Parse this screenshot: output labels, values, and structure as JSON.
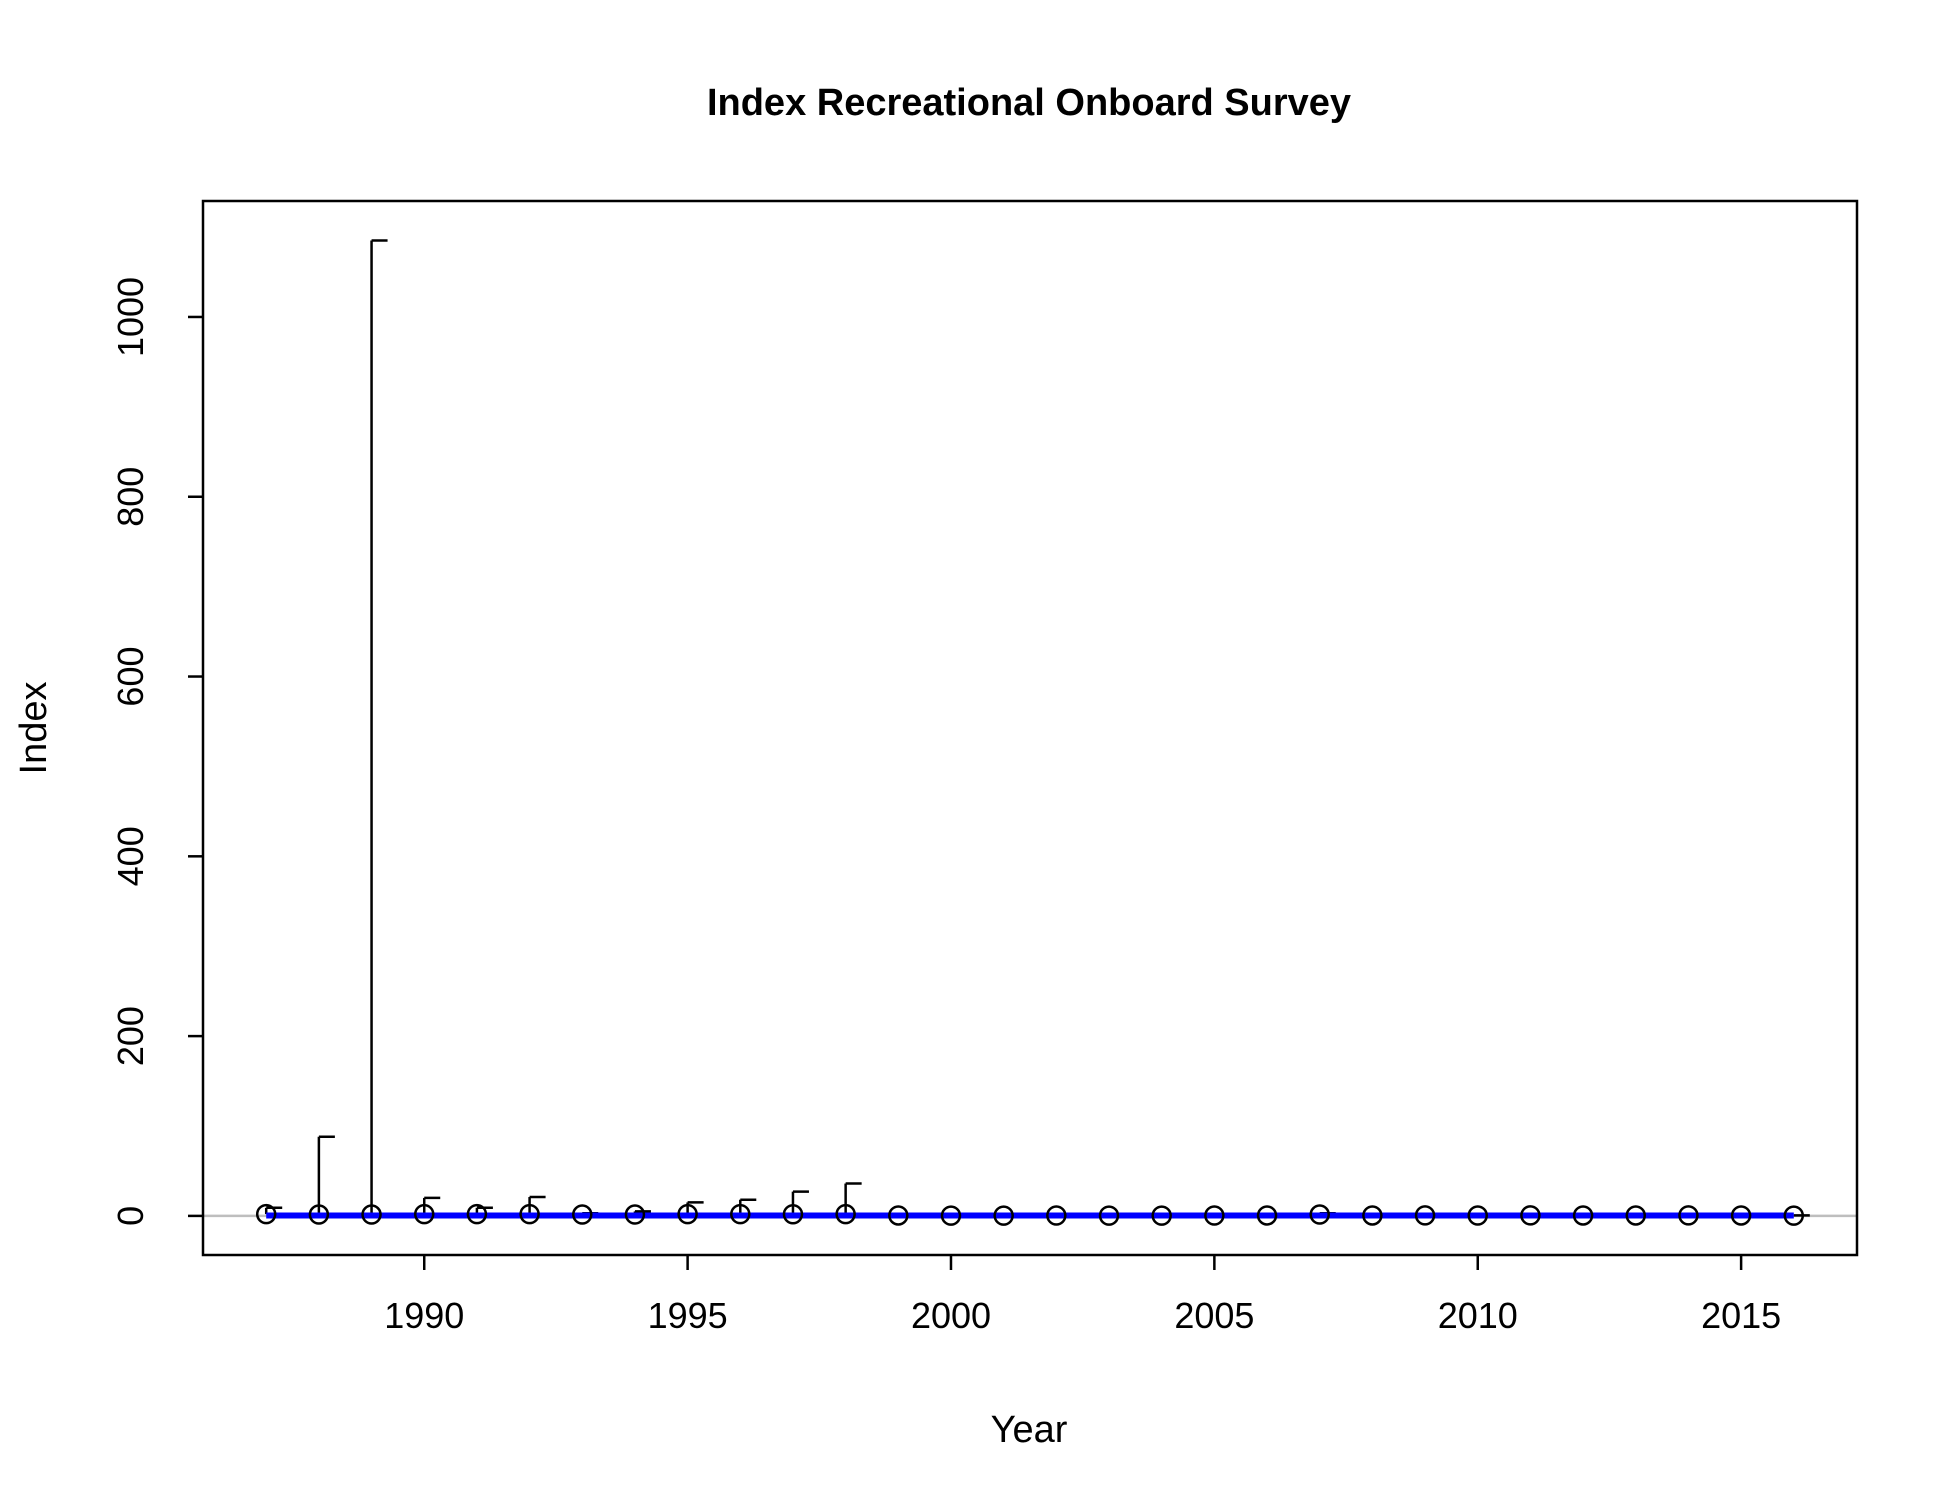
{
  "chart_data": {
    "type": "scatter",
    "title": "Index Recreational Onboard Survey",
    "xlabel": "Year",
    "ylabel": "Index",
    "xlim": [
      1985.8,
      2017.2
    ],
    "ylim": [
      -43.5,
      1129
    ],
    "x_ticks": [
      1990,
      1995,
      2000,
      2005,
      2010,
      2015
    ],
    "y_ticks": [
      0,
      200,
      400,
      600,
      800,
      1000
    ],
    "reference_line": 0,
    "colors": {
      "fit_line": "#0000ff",
      "points": "#000000",
      "error_bars": "#000000",
      "reference_line": "#bebebe",
      "frame": "#000000"
    },
    "series": [
      {
        "x": [
          1987,
          1988,
          1989,
          1990,
          1991,
          1992,
          1993,
          1994,
          1995,
          1996,
          1997,
          1998,
          1999,
          2000,
          2001,
          2002,
          2003,
          2004,
          2005,
          2006,
          2007,
          2008,
          2009,
          2010,
          2011,
          2012,
          2013,
          2014,
          2015,
          2016
        ],
        "observed": [
          2,
          1.5,
          1.5,
          2,
          2,
          2,
          1.5,
          1.5,
          2,
          2,
          1.8,
          2,
          0.5,
          0.3,
          0.3,
          0.4,
          0.3,
          0.3,
          0.4,
          0.5,
          1.5,
          0.5,
          0.6,
          0.4,
          0.6,
          0.5,
          0.5,
          0.6,
          0.5,
          0.3
        ],
        "upper": [
          9,
          88,
          1085,
          20,
          9,
          21,
          3,
          5,
          15,
          18,
          27,
          36,
          1,
          0.6,
          0.6,
          0.8,
          0.6,
          0.6,
          0.8,
          1,
          3,
          1,
          1.2,
          0.8,
          1.2,
          1,
          1,
          1.2,
          1,
          0.6
        ],
        "expected": [
          0.5,
          0.5,
          0.5,
          0.5,
          0.5,
          0.5,
          0.5,
          0.5,
          0.5,
          0.5,
          0.5,
          0.5,
          0.5,
          0.5,
          0.5,
          0.5,
          0.5,
          0.5,
          0.5,
          0.5,
          0.5,
          0.5,
          0.5,
          0.5,
          0.5,
          0.5,
          0.5,
          0.5,
          0.5,
          0.5
        ]
      }
    ]
  }
}
